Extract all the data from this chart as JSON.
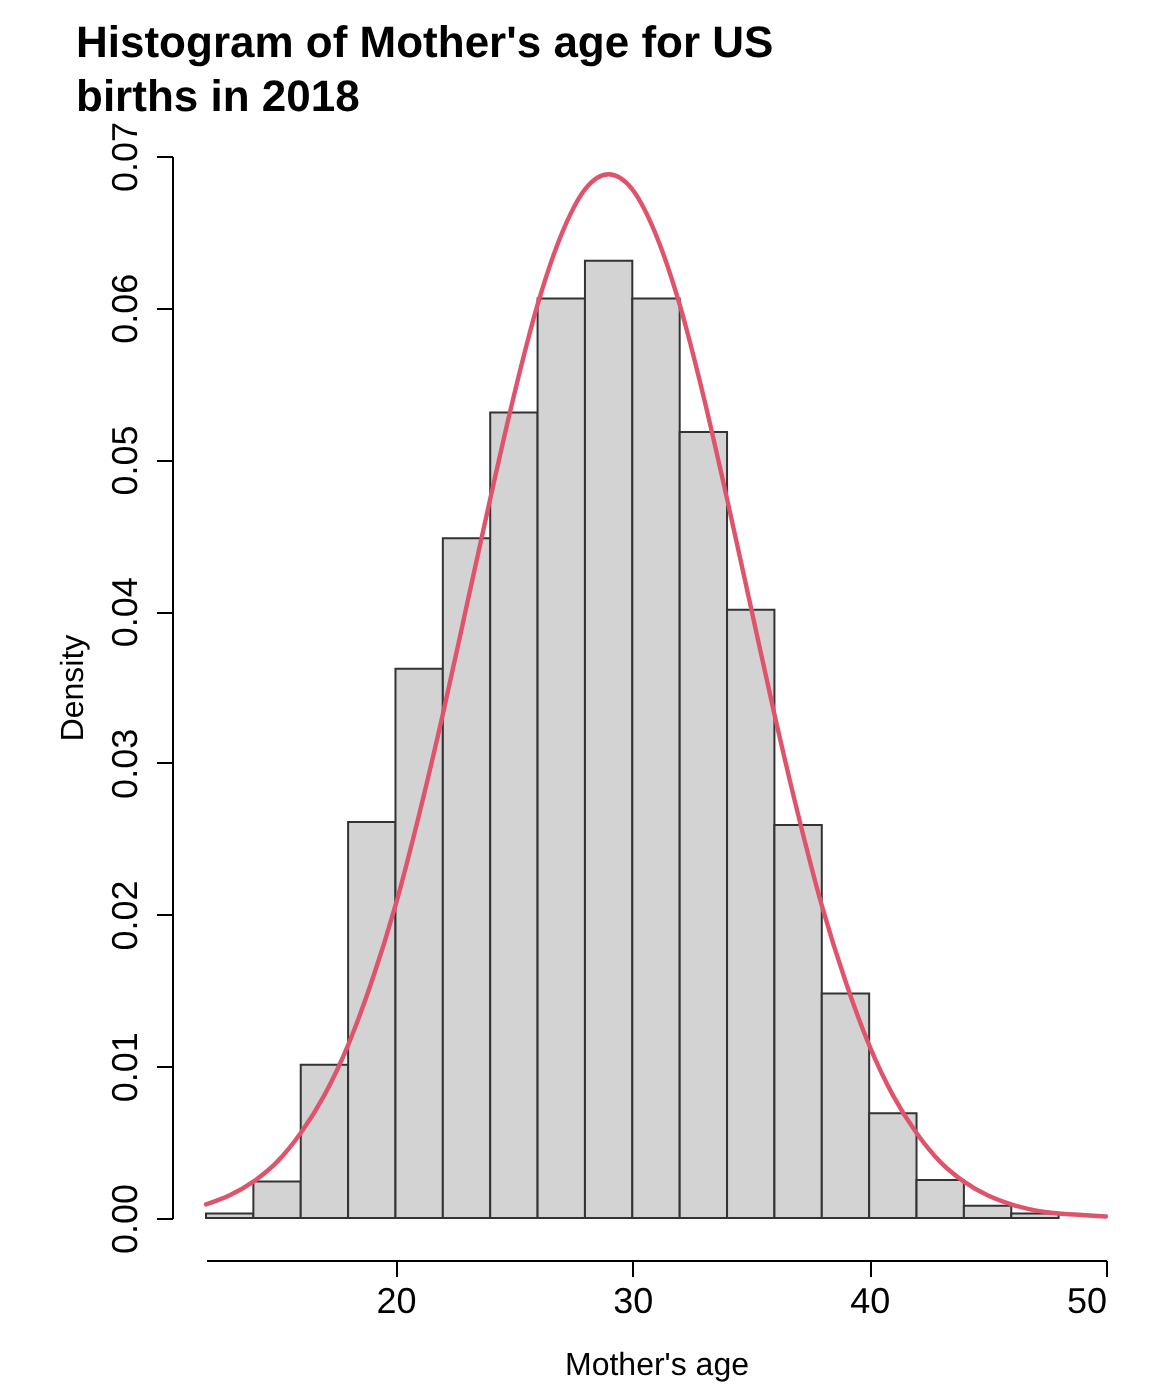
{
  "chart_data": {
    "type": "histogram",
    "title": [
      "Histogram of Mother's age for US",
      "births in 2018"
    ],
    "xlabel": "Mother's age",
    "ylabel": "Density",
    "bins": [
      12,
      14,
      16,
      18,
      20,
      22,
      24,
      26,
      28,
      30,
      32,
      34,
      36,
      38,
      40,
      42,
      44,
      46,
      48,
      50
    ],
    "values": [
      0.0003,
      0.0024,
      0.0101,
      0.0261,
      0.0362,
      0.0448,
      0.0531,
      0.0606,
      0.0631,
      0.0606,
      0.0518,
      0.0401,
      0.0259,
      0.0148,
      0.0069,
      0.0025,
      0.0008,
      0.0003,
      null
    ],
    "color": "#d3d3d3",
    "series": [
      {
        "type": "line",
        "color": "#df536b",
        "x": [
          12,
          13,
          14,
          15,
          16,
          17,
          18,
          19,
          20,
          21,
          22,
          23,
          24,
          25,
          26,
          27,
          28,
          29,
          30,
          31,
          32,
          33,
          34,
          35,
          36,
          37,
          38,
          39,
          40,
          41,
          42,
          43,
          44,
          45,
          46,
          47,
          48,
          49,
          50
        ],
        "values": [
          0.0009,
          0.0015,
          0.0024,
          0.0037,
          0.0056,
          0.0081,
          0.0114,
          0.0156,
          0.0206,
          0.0266,
          0.0332,
          0.0403,
          0.0474,
          0.0542,
          0.0602,
          0.0648,
          0.0678,
          0.0688,
          0.0678,
          0.0648,
          0.0602,
          0.0542,
          0.0474,
          0.0403,
          0.0332,
          0.0266,
          0.0206,
          0.0156,
          0.0114,
          0.0081,
          0.0056,
          0.0037,
          0.0024,
          0.0015,
          0.0009,
          0.0005,
          0.0003,
          0.0002,
          0.0001
        ]
      }
    ],
    "xlim": [
      12,
      50
    ],
    "xticks": [
      20,
      30,
      40,
      50
    ],
    "ylim": [
      0,
      0.07
    ],
    "yticks": [
      {
        "value": 0,
        "label": "0.00"
      },
      {
        "value": 0.01,
        "label": "0.01"
      },
      {
        "value": 0.02,
        "label": "0.02"
      },
      {
        "value": 0.03,
        "label": "0.03"
      },
      {
        "value": 0.04,
        "label": "0.04"
      },
      {
        "value": 0.05,
        "label": "0.05"
      },
      {
        "value": 0.06,
        "label": "0.06"
      },
      {
        "value": 0.07,
        "label": "0.07"
      }
    ]
  }
}
